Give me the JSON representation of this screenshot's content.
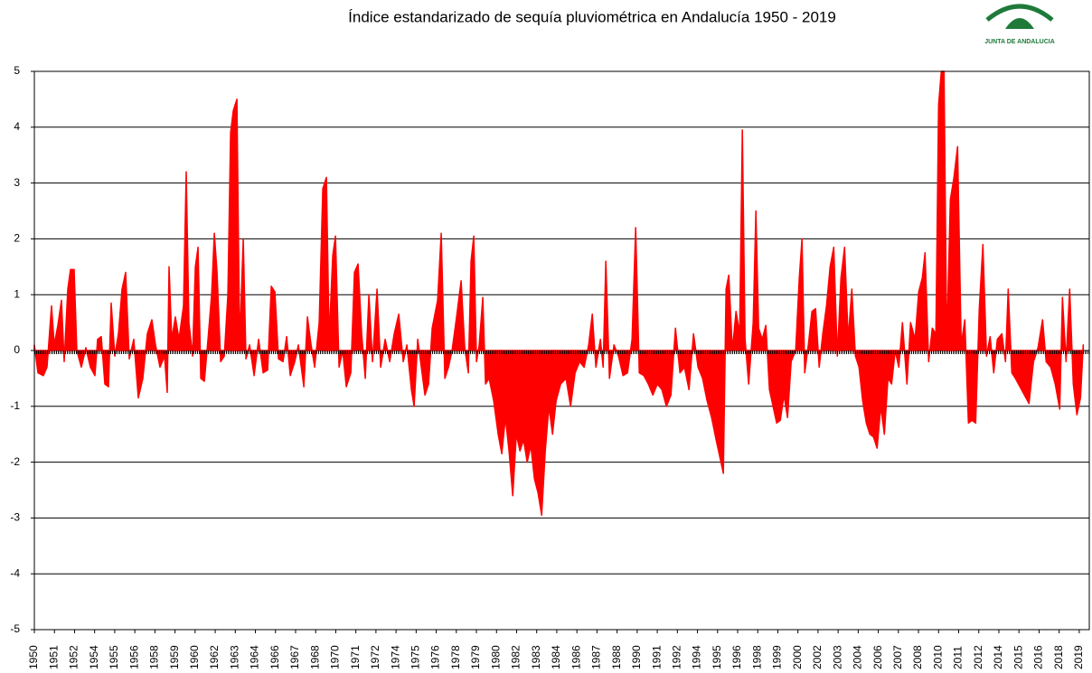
{
  "chart_data": {
    "type": "area",
    "title": "Índice estandarizado de sequía pluviométrica en Andalucía 1950 - 2019",
    "logo_text": "JUNTA DE ANDALUCIA",
    "color": "#ff0000",
    "grid": true,
    "ylim": [
      -5,
      5
    ],
    "yticks": [
      -5,
      -4,
      -3,
      -2,
      -1,
      0,
      1,
      2,
      3,
      4,
      5
    ],
    "xlim": [
      1950,
      2020
    ],
    "xticks": [
      1950,
      {
        "value": 1951.3333,
        "label": "1951"
      },
      {
        "value": 1952.6667,
        "label": "1952"
      },
      1954,
      {
        "value": 1955.3333,
        "label": "1955"
      },
      {
        "value": 1956.6667,
        "label": "1956"
      },
      1958,
      {
        "value": 1959.3333,
        "label": "1959"
      },
      {
        "value": 1960.6667,
        "label": "1960"
      },
      1962,
      {
        "value": 1963.3333,
        "label": "1963"
      },
      {
        "value": 1964.6667,
        "label": "1964"
      },
      1966,
      {
        "value": 1967.3333,
        "label": "1967"
      },
      {
        "value": 1968.6667,
        "label": "1968"
      },
      1970,
      {
        "value": 1971.3333,
        "label": "1971"
      },
      {
        "value": 1972.6667,
        "label": "1972"
      },
      1974,
      {
        "value": 1975.3333,
        "label": "1975"
      },
      {
        "value": 1976.6667,
        "label": "1976"
      },
      1978,
      {
        "value": 1979.3333,
        "label": "1979"
      },
      {
        "value": 1980.6667,
        "label": "1980"
      },
      1982,
      {
        "value": 1983.3333,
        "label": "1983"
      },
      {
        "value": 1984.6667,
        "label": "1984"
      },
      1986,
      {
        "value": 1987.3333,
        "label": "1987"
      },
      {
        "value": 1988.6667,
        "label": "1988"
      },
      1990,
      {
        "value": 1991.3333,
        "label": "1991"
      },
      {
        "value": 1992.6667,
        "label": "1992"
      },
      1994,
      {
        "value": 1995.3333,
        "label": "1995"
      },
      {
        "value": 1996.6667,
        "label": "1996"
      },
      1998,
      {
        "value": 1999.3333,
        "label": "1999"
      },
      {
        "value": 2000.6667,
        "label": "2000"
      },
      2002,
      {
        "value": 2003.3333,
        "label": "2003"
      },
      {
        "value": 2004.6667,
        "label": "2004"
      },
      2006,
      {
        "value": 2007.3333,
        "label": "2007"
      },
      {
        "value": 2008.6667,
        "label": "2008"
      },
      2010,
      {
        "value": 2011.3333,
        "label": "2011"
      },
      {
        "value": 2012.6667,
        "label": "2012"
      },
      2014,
      {
        "value": 2015.3333,
        "label": "2015"
      },
      {
        "value": 2016.6667,
        "label": "2016"
      },
      2018,
      {
        "value": 2019.3333,
        "label": "2019"
      }
    ],
    "x": [
      1950.0,
      1950.24,
      1950.6,
      1950.84,
      1951.14,
      1951.32,
      1951.56,
      1951.8,
      1951.98,
      1952.22,
      1952.4,
      1952.64,
      1952.82,
      1953.12,
      1953.42,
      1953.72,
      1954.02,
      1954.2,
      1954.44,
      1954.68,
      1954.92,
      1955.1,
      1955.34,
      1955.58,
      1955.82,
      1956.06,
      1956.3,
      1956.6,
      1956.9,
      1957.2,
      1957.5,
      1957.8,
      1958.04,
      1958.34,
      1958.64,
      1958.82,
      1958.94,
      1959.12,
      1959.36,
      1959.6,
      1959.9,
      1960.08,
      1960.26,
      1960.5,
      1960.68,
      1960.86,
      1961.04,
      1961.28,
      1961.52,
      1961.76,
      1961.94,
      1962.12,
      1962.36,
      1962.6,
      1962.84,
      1963.02,
      1963.2,
      1963.44,
      1963.62,
      1963.86,
      1964.04,
      1964.28,
      1964.58,
      1964.88,
      1965.18,
      1965.48,
      1965.72,
      1965.96,
      1966.2,
      1966.5,
      1966.74,
      1966.98,
      1967.28,
      1967.52,
      1967.88,
      1968.12,
      1968.36,
      1968.6,
      1968.9,
      1969.14,
      1969.38,
      1969.56,
      1969.8,
      1969.98,
      1970.22,
      1970.46,
      1970.7,
      1971.0,
      1971.24,
      1971.48,
      1971.72,
      1971.96,
      1972.2,
      1972.44,
      1972.74,
      1972.98,
      1973.28,
      1973.58,
      1973.88,
      1974.18,
      1974.48,
      1974.72,
      1975.02,
      1975.2,
      1975.44,
      1975.68,
      1975.92,
      1976.16,
      1976.4,
      1976.76,
      1977.0,
      1977.24,
      1977.48,
      1977.72,
      1978.02,
      1978.32,
      1978.56,
      1978.8,
      1978.98,
      1979.16,
      1979.34,
      1979.52,
      1979.76,
      1979.94,
      1980.18,
      1980.48,
      1980.78,
      1981.02,
      1981.26,
      1981.5,
      1981.74,
      1981.98,
      1982.22,
      1982.46,
      1982.7,
      1982.94,
      1983.18,
      1983.42,
      1983.66,
      1983.9,
      1984.14,
      1984.38,
      1984.62,
      1984.92,
      1985.28,
      1985.58,
      1985.88,
      1986.18,
      1986.48,
      1986.78,
      1987.02,
      1987.26,
      1987.56,
      1987.74,
      1987.92,
      1988.16,
      1988.46,
      1988.76,
      1989.06,
      1989.36,
      1989.66,
      1989.9,
      1990.14,
      1990.44,
      1990.74,
      1991.04,
      1991.34,
      1991.64,
      1991.94,
      1992.24,
      1992.54,
      1992.84,
      1993.14,
      1993.44,
      1993.74,
      1994.04,
      1994.34,
      1994.64,
      1994.94,
      1995.24,
      1995.48,
      1995.72,
      1995.9,
      1996.08,
      1996.32,
      1996.56,
      1996.8,
      1996.98,
      1997.16,
      1997.4,
      1997.7,
      1997.88,
      1998.06,
      1998.3,
      1998.54,
      1998.78,
      1999.02,
      1999.26,
      1999.5,
      1999.74,
      1999.98,
      2000.22,
      2000.52,
      2000.76,
      2000.94,
      2001.12,
      2001.36,
      2001.6,
      2001.84,
      2002.08,
      2002.32,
      2002.56,
      2002.8,
      2003.04,
      2003.28,
      2003.52,
      2003.76,
      2004.0,
      2004.24,
      2004.48,
      2004.72,
      2004.96,
      2005.2,
      2005.44,
      2005.68,
      2005.92,
      2006.16,
      2006.4,
      2006.64,
      2006.88,
      2007.12,
      2007.36,
      2007.6,
      2007.9,
      2008.14,
      2008.44,
      2008.68,
      2008.92,
      2009.1,
      2009.34,
      2009.58,
      2009.82,
      2010.0,
      2010.18,
      2010.36,
      2010.54,
      2010.78,
      2011.02,
      2011.26,
      2011.5,
      2011.74,
      2011.98,
      2012.22,
      2012.46,
      2012.7,
      2012.94,
      2013.18,
      2013.42,
      2013.66,
      2013.9,
      2014.2,
      2014.44,
      2014.62,
      2014.86,
      2015.1,
      2015.4,
      2015.7,
      2016.0,
      2016.3,
      2016.6,
      2016.9,
      2017.14,
      2017.44,
      2017.74,
      2018.04,
      2018.22,
      2018.46,
      2018.7,
      2018.94,
      2019.18,
      2019.42,
      2019.6
    ],
    "values": [
      0.1,
      -0.4,
      -0.45,
      -0.3,
      0.8,
      0.1,
      0.45,
      0.9,
      -0.2,
      1.1,
      1.45,
      1.45,
      0.0,
      -0.3,
      0.05,
      -0.3,
      -0.45,
      0.2,
      0.25,
      -0.6,
      -0.65,
      0.85,
      -0.1,
      0.3,
      1.1,
      1.4,
      -0.15,
      0.2,
      -0.85,
      -0.5,
      0.3,
      0.55,
      0.1,
      -0.3,
      -0.1,
      -0.75,
      1.5,
      0.2,
      0.6,
      0.2,
      0.8,
      3.2,
      0.5,
      -0.1,
      1.5,
      1.85,
      -0.5,
      -0.55,
      0.2,
      1.0,
      2.1,
      1.4,
      -0.2,
      -0.1,
      1.0,
      3.9,
      4.3,
      4.5,
      0.1,
      2.0,
      -0.15,
      0.1,
      -0.45,
      0.2,
      -0.4,
      -0.35,
      1.15,
      1.05,
      -0.15,
      -0.2,
      0.25,
      -0.45,
      -0.2,
      0.1,
      -0.65,
      0.6,
      0.1,
      -0.3,
      0.5,
      2.9,
      3.1,
      0.2,
      1.7,
      2.05,
      -0.3,
      0.0,
      -0.65,
      -0.4,
      1.4,
      1.55,
      0.3,
      -0.5,
      1.0,
      -0.2,
      1.1,
      -0.3,
      0.2,
      -0.2,
      0.3,
      0.65,
      -0.2,
      0.1,
      -0.7,
      -1.0,
      0.2,
      -0.3,
      -0.8,
      -0.6,
      0.4,
      0.9,
      2.1,
      -0.5,
      -0.3,
      0.0,
      0.6,
      1.25,
      0.05,
      -0.4,
      1.6,
      2.05,
      -0.2,
      0.1,
      0.95,
      -0.6,
      -0.5,
      -0.9,
      -1.5,
      -1.85,
      -1.2,
      -1.8,
      -2.6,
      -1.5,
      -1.8,
      -1.6,
      -2.0,
      -1.7,
      -2.3,
      -2.55,
      -2.95,
      -1.8,
      -1.0,
      -1.5,
      -0.9,
      -0.6,
      -0.5,
      -1.0,
      -0.4,
      -0.2,
      -0.3,
      0.1,
      0.65,
      -0.3,
      0.2,
      -0.3,
      1.6,
      -0.5,
      0.1,
      -0.1,
      -0.45,
      -0.4,
      0.2,
      2.2,
      -0.4,
      -0.45,
      -0.6,
      -0.8,
      -0.6,
      -0.7,
      -1.0,
      -0.8,
      0.4,
      -0.4,
      -0.3,
      -0.7,
      0.3,
      -0.3,
      -0.5,
      -0.9,
      -1.2,
      -1.6,
      -1.9,
      -2.2,
      1.1,
      1.35,
      0.0,
      0.7,
      0.3,
      3.95,
      0.2,
      -0.6,
      0.5,
      2.5,
      0.4,
      0.2,
      0.45,
      -0.7,
      -1.0,
      -1.3,
      -1.25,
      -0.8,
      -1.2,
      -0.2,
      0.0,
      1.3,
      2.0,
      -0.4,
      0.1,
      0.7,
      0.75,
      -0.3,
      0.3,
      0.8,
      1.5,
      1.85,
      -0.1,
      1.3,
      1.85,
      0.2,
      1.1,
      -0.1,
      -0.3,
      -0.9,
      -1.3,
      -1.5,
      -1.55,
      -1.75,
      -1.0,
      -1.5,
      -0.5,
      -0.6,
      0.0,
      -0.3,
      0.5,
      -0.6,
      0.5,
      0.2,
      1.05,
      1.3,
      1.75,
      -0.2,
      0.4,
      0.3,
      4.4,
      5.0,
      5.0,
      0.1,
      2.7,
      3.1,
      3.65,
      0.1,
      0.55,
      -1.3,
      -1.25,
      -1.3,
      0.75,
      1.9,
      -0.1,
      0.25,
      -0.4,
      0.2,
      0.3,
      -0.2,
      1.1,
      -0.4,
      -0.5,
      -0.65,
      -0.8,
      -0.95,
      -0.2,
      0.05,
      0.55,
      -0.2,
      -0.3,
      -0.6,
      -1.05,
      0.95,
      -0.2,
      1.1,
      -0.6,
      -1.15,
      -0.85,
      0.1
    ]
  }
}
